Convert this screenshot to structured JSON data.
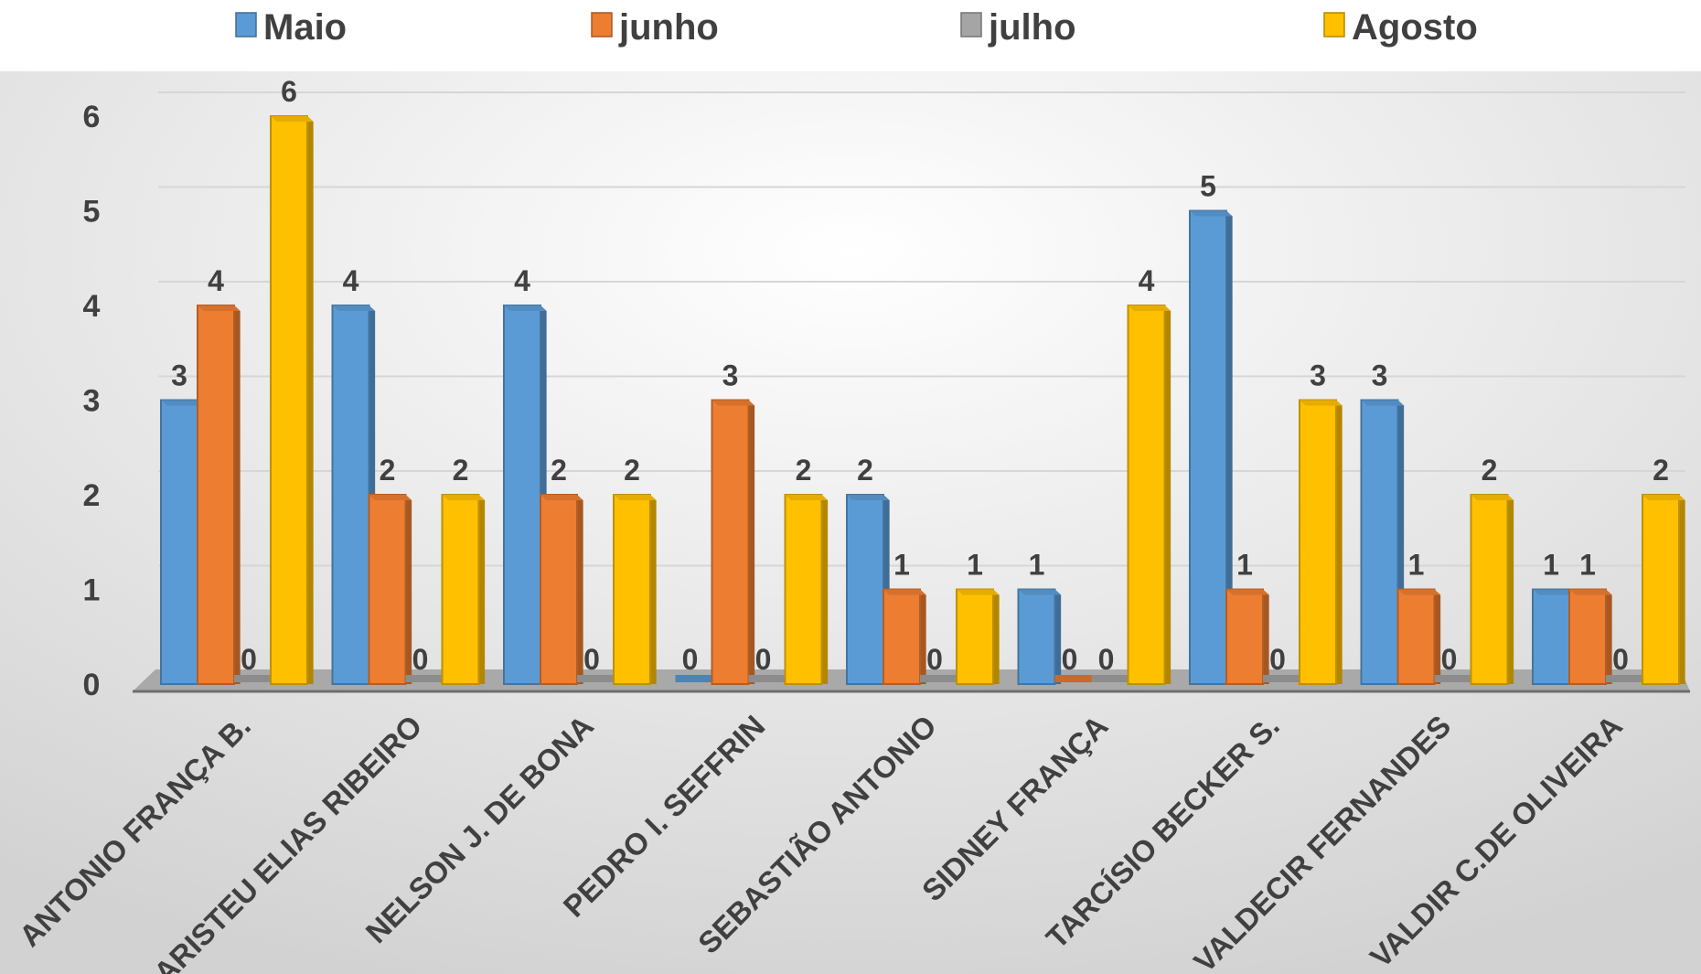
{
  "chart_data": {
    "type": "bar",
    "categories": [
      "ANTONIO FRANÇA B.",
      "ARISTEU ELIAS RIBEIRO",
      "NELSON J. DE BONA",
      "PEDRO I. SEFFRIN",
      "SEBASTIÃO ANTONIO",
      "SIDNEY FRANÇA",
      "TARCÍSIO BECKER S.",
      "VALDECIR FERNANDES",
      "VALDIR C.DE OLIVEIRA"
    ],
    "series": [
      {
        "name": "Maio",
        "color": "#5B9BD5",
        "values": [
          3,
          4,
          4,
          0,
          2,
          1,
          5,
          3,
          1
        ]
      },
      {
        "name": "junho",
        "color": "#ED7D31",
        "values": [
          4,
          2,
          2,
          3,
          1,
          0,
          1,
          1,
          1
        ]
      },
      {
        "name": "julho",
        "color": "#A5A5A5",
        "values": [
          0,
          0,
          0,
          0,
          0,
          0,
          0,
          0,
          0
        ]
      },
      {
        "name": "Agosto",
        "color": "#FFC000",
        "values": [
          6,
          2,
          2,
          2,
          1,
          4,
          3,
          2,
          2
        ]
      }
    ],
    "yticks": [
      "0",
      "1",
      "2",
      "3",
      "4",
      "5",
      "6"
    ],
    "ylim": [
      0,
      6
    ],
    "grid": true,
    "legend_position": "top",
    "data_labels": true
  }
}
